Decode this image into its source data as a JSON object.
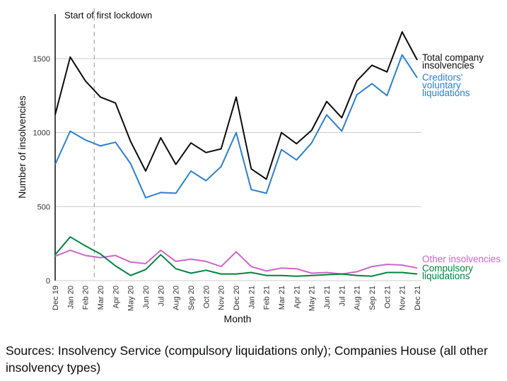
{
  "chart_data": {
    "type": "line",
    "title": "",
    "xlabel": "Month",
    "ylabel": "Number of insolvencies",
    "ylim": [
      0,
      1800
    ],
    "yticks": [
      0,
      500,
      1000,
      1500
    ],
    "grid": "horizontal",
    "legend": "direct labels at right end of lines",
    "categories": [
      "Dec 19",
      "Jan 20",
      "Feb 20",
      "Mar 20",
      "Apr 20",
      "May 20",
      "Jun 20",
      "Jul 20",
      "Aug 20",
      "Sep 20",
      "Oct 20",
      "Nov 20",
      "Dec 20",
      "Jan 21",
      "Feb 21",
      "Mar 21",
      "Apr 21",
      "May 21",
      "Jun 21",
      "Jul 21",
      "Aug 21",
      "Sep 21",
      "Oct 21",
      "Nov 21",
      "Dec 21"
    ],
    "series": [
      {
        "key": "total",
        "name_lines": [
          "Total company",
          "insolvencies"
        ],
        "color": "#0b0c0c",
        "values": [
          1120,
          1510,
          1350,
          1240,
          1200,
          940,
          740,
          965,
          785,
          930,
          865,
          890,
          1240,
          755,
          685,
          1000,
          925,
          1015,
          1210,
          1100,
          1350,
          1455,
          1410,
          1680,
          1490
        ]
      },
      {
        "key": "cvl",
        "name_lines": [
          "Creditors'",
          "voluntary",
          "liquidations"
        ],
        "color": "#2b7fd3",
        "values": [
          785,
          1010,
          950,
          910,
          935,
          790,
          560,
          595,
          590,
          740,
          675,
          770,
          1000,
          615,
          590,
          885,
          815,
          930,
          1120,
          1010,
          1255,
          1330,
          1250,
          1525,
          1370
        ]
      },
      {
        "key": "other",
        "name_lines": [
          "Other insolvencies"
        ],
        "color": "#cc66cc",
        "values": [
          165,
          205,
          170,
          155,
          170,
          125,
          115,
          205,
          130,
          145,
          130,
          95,
          195,
          95,
          65,
          85,
          80,
          50,
          55,
          45,
          60,
          95,
          110,
          105,
          85
        ]
      },
      {
        "key": "compulsory",
        "name_lines": [
          "Compulsory",
          "liquidations"
        ],
        "color": "#00843d",
        "values": [
          175,
          295,
          235,
          180,
          100,
          35,
          75,
          175,
          80,
          50,
          70,
          45,
          45,
          55,
          35,
          35,
          30,
          35,
          40,
          45,
          35,
          30,
          55,
          55,
          45
        ]
      }
    ],
    "annotation": {
      "text": "Start of first lockdown",
      "at_category": "Mar 20"
    }
  },
  "footer": {
    "source_text": "Sources: Insolvency Service (compulsory liquidations only); Companies House (all other insolvency types)"
  }
}
